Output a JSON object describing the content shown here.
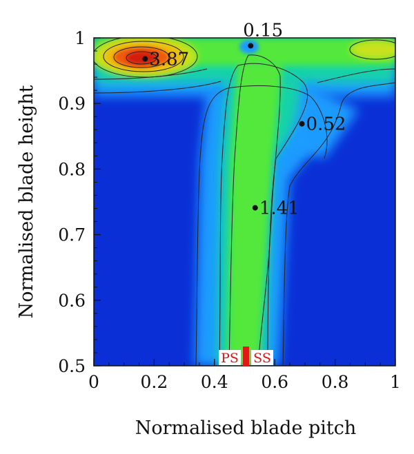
{
  "chart_data": {
    "type": "heatmap",
    "title": "",
    "xlabel": "Normalised blade pitch",
    "ylabel": "Normalised blade height",
    "xlim": [
      0,
      1
    ],
    "ylim": [
      0.5,
      1
    ],
    "x_ticks": [
      "0",
      "0.2",
      "0.4",
      "0.6",
      "0.8",
      "1"
    ],
    "y_ticks": [
      "0.5",
      "0.6",
      "0.7",
      "0.8",
      "0.9",
      "1"
    ],
    "colormap": [
      "#0a2fd6",
      "#1f9bff",
      "#18d3a8",
      "#52e83b",
      "#c9e21c",
      "#f2b80f",
      "#ee5a10",
      "#d21a0e"
    ],
    "annotations": [
      {
        "label": "3.87",
        "x": 0.17,
        "y": 0.968
      },
      {
        "label": "0.15",
        "x": 0.52,
        "y": 0.988
      },
      {
        "label": "0.52",
        "x": 0.69,
        "y": 0.869
      },
      {
        "label": "1.41",
        "x": 0.535,
        "y": 0.741
      }
    ],
    "markers": {
      "pressure_side": "PS",
      "suction_side": "SS",
      "position": 0.5
    }
  }
}
